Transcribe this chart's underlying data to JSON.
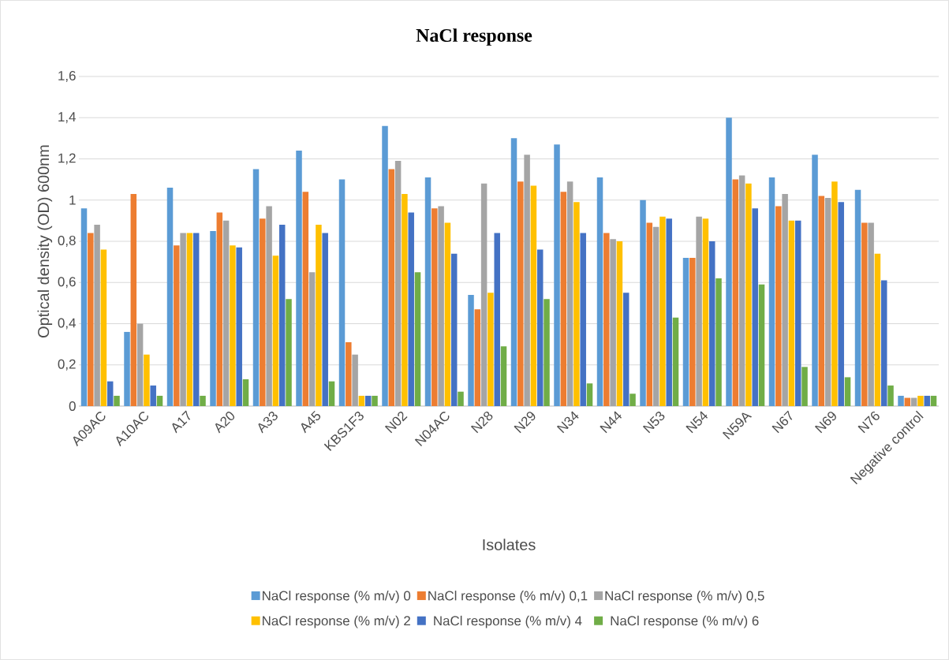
{
  "chart_data": {
    "type": "bar",
    "title": "NaCl response",
    "xlabel": "Isolates",
    "ylabel": "Optical density (OD) 600nm",
    "categories": [
      "A09AC",
      "A10AC",
      "A17",
      "A20",
      "A33",
      "A45",
      "KBS1F3",
      "N02",
      "N04AC",
      "N28",
      "N29",
      "N34",
      "N44",
      "N53",
      "N54",
      "N59A",
      "N67",
      "N69",
      "N76",
      "Negative control"
    ],
    "series": [
      {
        "name": "NaCl response (% m/v) 0",
        "color": "#5b9bd5",
        "values": [
          0.96,
          0.36,
          1.06,
          0.85,
          1.15,
          1.24,
          1.1,
          1.36,
          1.11,
          0.54,
          1.3,
          1.27,
          1.11,
          1.0,
          0.72,
          1.4,
          1.11,
          1.22,
          1.05,
          0.05
        ]
      },
      {
        "name": "NaCl response (% m/v) 0,1",
        "color": "#ed7d31",
        "values": [
          0.84,
          1.03,
          0.78,
          0.94,
          0.91,
          1.04,
          0.31,
          1.15,
          0.96,
          0.47,
          1.09,
          1.04,
          0.84,
          0.89,
          0.72,
          1.1,
          0.97,
          1.02,
          0.89,
          0.04
        ]
      },
      {
        "name": "NaCl response (% m/v) 0,5",
        "color": "#a5a5a5",
        "values": [
          0.88,
          0.4,
          0.84,
          0.9,
          0.97,
          0.65,
          0.25,
          1.19,
          0.97,
          1.08,
          1.22,
          1.09,
          0.81,
          0.87,
          0.92,
          1.12,
          1.03,
          1.01,
          0.89,
          0.04
        ]
      },
      {
        "name": "NaCl response (% m/v) 2",
        "color": "#ffc000",
        "values": [
          0.76,
          0.25,
          0.84,
          0.78,
          0.73,
          0.88,
          0.05,
          1.03,
          0.89,
          0.55,
          1.07,
          0.99,
          0.8,
          0.92,
          0.91,
          1.08,
          0.9,
          1.09,
          0.74,
          0.05
        ]
      },
      {
        "name": "NaCl response (% m/v) 4",
        "color": "#4472c4",
        "values": [
          0.12,
          0.1,
          0.84,
          0.77,
          0.88,
          0.84,
          0.05,
          0.94,
          0.74,
          0.84,
          0.76,
          0.84,
          0.55,
          0.91,
          0.8,
          0.96,
          0.9,
          0.99,
          0.61,
          0.05
        ]
      },
      {
        "name": "NaCl response (% m/v) 6",
        "color": "#70ad47",
        "values": [
          0.05,
          0.05,
          0.05,
          0.13,
          0.52,
          0.12,
          0.05,
          0.65,
          0.07,
          0.29,
          0.52,
          0.11,
          0.06,
          0.43,
          0.62,
          0.59,
          0.19,
          0.14,
          0.1,
          0.05
        ]
      }
    ],
    "ylim": [
      0,
      1.6
    ],
    "yticks": [
      0,
      {
        "value": 0.2,
        "label": "0,2"
      },
      {
        "value": 0.4,
        "label": "0,4"
      },
      {
        "value": 0.6,
        "label": "0,6"
      },
      {
        "value": 0.8,
        "label": "0,8"
      },
      1,
      {
        "value": 1.2,
        "label": "1,2"
      },
      {
        "value": 1.4,
        "label": "1,4"
      },
      {
        "value": 1.6,
        "label": "1,6"
      }
    ],
    "grid": "y",
    "legend": "bottom"
  }
}
